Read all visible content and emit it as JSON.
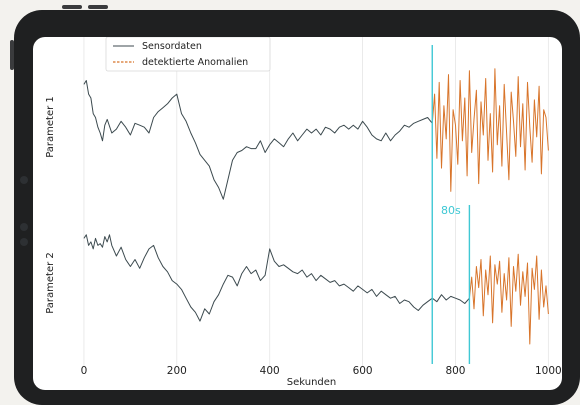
{
  "chart_data": {
    "type": "line",
    "xlabel": "Sekunden",
    "xlim": [
      -30,
      1010
    ],
    "xticks": [
      0,
      200,
      400,
      600,
      800,
      1000
    ],
    "legend": {
      "placement": "top-left",
      "entries": [
        "Sensordaten",
        "detektierte Anomalien"
      ]
    },
    "panels": [
      {
        "ylabel": "Parameter 1",
        "ylim": [
          -4.0,
          3.5
        ],
        "normal_series": {
          "name": "Sensordaten",
          "x": [
            0,
            5,
            10,
            15,
            20,
            25,
            30,
            35,
            40,
            45,
            50,
            60,
            70,
            80,
            90,
            100,
            110,
            120,
            130,
            140,
            150,
            160,
            170,
            180,
            190,
            200,
            210,
            220,
            230,
            240,
            250,
            260,
            270,
            280,
            290,
            300,
            310,
            320,
            330,
            340,
            350,
            360,
            370,
            380,
            390,
            400,
            410,
            420,
            430,
            440,
            450,
            460,
            470,
            480,
            490,
            500,
            510,
            520,
            530,
            540,
            550,
            560,
            570,
            580,
            590,
            600,
            610,
            620,
            630,
            640,
            650,
            660,
            670,
            680,
            690,
            700,
            710,
            720,
            730,
            740,
            750
          ],
          "y": [
            2.3,
            2.5,
            1.8,
            1.6,
            0.8,
            0.6,
            0.1,
            -0.2,
            -0.6,
            0.2,
            0.5,
            -0.2,
            0.0,
            0.4,
            0.1,
            -0.3,
            0.3,
            0.2,
            0.1,
            -0.2,
            0.6,
            0.9,
            1.1,
            1.3,
            1.6,
            1.8,
            0.8,
            0.4,
            -0.2,
            -0.7,
            -1.3,
            -1.6,
            -1.9,
            -2.6,
            -3.0,
            -3.6,
            -2.6,
            -1.6,
            -1.2,
            -1.1,
            -0.9,
            -1.0,
            -1.0,
            -0.6,
            -1.2,
            -0.8,
            -0.5,
            -0.7,
            -0.9,
            -0.5,
            -0.2,
            -0.6,
            -0.3,
            0.0,
            -0.2,
            0.0,
            -0.3,
            0.1,
            0.0,
            -0.2,
            0.1,
            0.2,
            0.0,
            0.2,
            0.0,
            0.4,
            0.1,
            -0.3,
            -0.5,
            -0.6,
            -0.2,
            -0.6,
            -0.3,
            -0.1,
            0.2,
            0.1,
            0.3,
            0.4,
            0.5,
            0.6,
            0.3
          ]
        },
        "anomaly_series": {
          "name": "detektierte Anomalien",
          "x": [
            750,
            755,
            760,
            765,
            770,
            775,
            780,
            785,
            790,
            795,
            800,
            805,
            810,
            815,
            820,
            825,
            830,
            835,
            840,
            845,
            850,
            855,
            860,
            865,
            870,
            875,
            880,
            885,
            890,
            895,
            900,
            905,
            910,
            915,
            920,
            925,
            930,
            935,
            940,
            945,
            950,
            955,
            960,
            965,
            970,
            975,
            980,
            985,
            990,
            995,
            1000
          ],
          "y": [
            0.3,
            1.8,
            -1.5,
            2.4,
            -2.0,
            1.2,
            -0.5,
            2.8,
            -3.2,
            1.0,
            0.2,
            -1.8,
            2.5,
            -0.6,
            1.6,
            -2.4,
            3.0,
            -1.2,
            0.5,
            2.0,
            -2.8,
            1.4,
            -0.3,
            2.6,
            -1.6,
            0.8,
            -2.2,
            3.1,
            -0.8,
            1.2,
            -1.9,
            2.3,
            -0.2,
            -2.6,
            1.9,
            0.4,
            -1.4,
            2.7,
            -0.9,
            1.3,
            -2.1,
            2.4,
            0.1,
            -1.7,
            1.5,
            -0.4,
            2.2,
            -2.3,
            1.0,
            0.6,
            -1.1
          ]
        }
      },
      {
        "ylabel": "Parameter 2",
        "ylim": [
          -4.0,
          3.5
        ],
        "normal_series": {
          "name": "Sensordaten",
          "x": [
            0,
            5,
            10,
            15,
            20,
            25,
            30,
            35,
            40,
            45,
            50,
            55,
            60,
            70,
            80,
            90,
            100,
            110,
            120,
            130,
            140,
            150,
            160,
            170,
            180,
            190,
            200,
            210,
            220,
            230,
            240,
            250,
            260,
            270,
            280,
            290,
            300,
            310,
            320,
            330,
            340,
            350,
            360,
            370,
            380,
            390,
            400,
            410,
            420,
            430,
            440,
            450,
            460,
            470,
            480,
            490,
            500,
            510,
            520,
            530,
            540,
            550,
            560,
            570,
            580,
            590,
            600,
            610,
            620,
            630,
            640,
            650,
            660,
            670,
            680,
            690,
            700,
            710,
            720,
            730,
            740,
            750,
            760,
            770,
            780,
            790,
            800,
            810,
            820,
            830
          ],
          "y": [
            2.4,
            2.6,
            2.0,
            2.2,
            1.8,
            2.4,
            2.0,
            2.1,
            1.9,
            2.5,
            2.2,
            2.6,
            2.0,
            1.4,
            1.9,
            1.2,
            0.8,
            1.2,
            0.7,
            1.3,
            1.8,
            2.0,
            1.3,
            0.8,
            0.5,
            0.0,
            -0.2,
            -0.5,
            -1.0,
            -1.5,
            -1.8,
            -2.3,
            -1.6,
            -1.9,
            -1.2,
            -0.8,
            -0.2,
            0.3,
            0.2,
            -0.3,
            0.4,
            0.8,
            0.4,
            0.6,
            0.0,
            0.3,
            1.8,
            1.1,
            0.8,
            0.9,
            0.7,
            0.5,
            0.4,
            0.6,
            0.2,
            0.4,
            0.0,
            0.3,
            0.1,
            -0.1,
            0.0,
            -0.3,
            -0.2,
            -0.4,
            -0.6,
            -0.3,
            -0.5,
            -0.7,
            -0.5,
            -0.9,
            -0.6,
            -0.8,
            -1.0,
            -0.9,
            -1.3,
            -1.1,
            -1.2,
            -1.5,
            -1.7,
            -1.4,
            -1.2,
            -1.0,
            -1.2,
            -0.8,
            -1.1,
            -0.9,
            -1.0,
            -1.1,
            -1.3,
            -1.0
          ]
        },
        "anomaly_series": {
          "name": "detektierte Anomalien",
          "x": [
            830,
            835,
            840,
            845,
            850,
            855,
            860,
            865,
            870,
            875,
            880,
            885,
            890,
            895,
            900,
            905,
            910,
            915,
            920,
            925,
            930,
            935,
            940,
            945,
            950,
            955,
            960,
            965,
            970,
            975,
            980,
            985,
            990,
            995,
            1000
          ],
          "y": [
            -1.0,
            0.2,
            -1.6,
            0.8,
            -0.4,
            1.2,
            -2.0,
            0.6,
            -0.8,
            1.4,
            -2.4,
            0.9,
            -0.2,
            1.1,
            -1.8,
            0.4,
            -1.1,
            1.3,
            -2.6,
            0.8,
            -0.6,
            1.5,
            -1.4,
            0.5,
            -0.9,
            1.0,
            -3.6,
            0.7,
            -0.5,
            1.4,
            -2.2,
            0.6,
            -1.5,
            -0.3,
            -1.9
          ]
        }
      }
    ],
    "markers": [
      {
        "x": 750,
        "color": "#3fc8d4"
      },
      {
        "x": 830,
        "color": "#3fc8d4"
      }
    ],
    "interval_annotation": {
      "text": "80s",
      "from": 750,
      "to": 830,
      "color": "#3fc8d4"
    },
    "colors": {
      "normal": "#3c4a4f",
      "anomaly": "#d8742a",
      "grid": "#e6e6e6",
      "axis_text": "#222222"
    }
  }
}
